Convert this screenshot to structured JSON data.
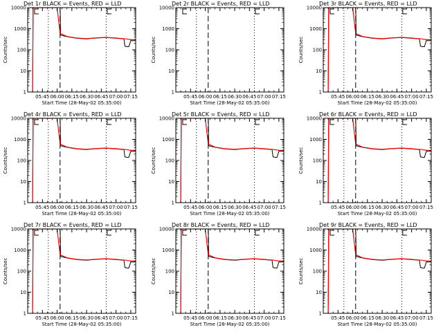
{
  "chart_data": {
    "type": "line",
    "scale": "log",
    "ylim": [
      1,
      10000
    ],
    "x_ticks": [
      "05:45",
      "06:00",
      "06:15",
      "06:30",
      "06:45",
      "07:00",
      "07:15"
    ],
    "y_ticks": [
      "1",
      "10",
      "100",
      "1000",
      "10000"
    ],
    "ylabel": "Counts/sec",
    "xlabel": "Start Time (28-May-02 05:35:00)",
    "series_colors": {
      "events": "#000000",
      "lld": "#ff0000"
    },
    "panels": [
      {
        "title": "Det 1r BLACK = Events, RED = LLD",
        "has_data": true,
        "dotted": [
          "05:51",
          "06:50"
        ],
        "dashed": [
          "06:03"
        ],
        "markers": [
          "05:37",
          "06:51"
        ],
        "events": [
          [
            0,
            1
          ],
          [
            0.5,
            9000
          ],
          [
            1,
            10000
          ],
          [
            28,
            10000
          ],
          [
            28.2,
            5000
          ],
          [
            28.5,
            500
          ],
          [
            35,
            420
          ],
          [
            45,
            350
          ],
          [
            55,
            330
          ],
          [
            65,
            360
          ],
          [
            75,
            380
          ],
          [
            85,
            350
          ],
          [
            93,
            330
          ],
          [
            94,
            150
          ],
          [
            96,
            140
          ],
          [
            98,
            140
          ],
          [
            100,
            270
          ],
          [
            110,
            270
          ]
        ],
        "lld": [
          [
            0,
            1
          ],
          [
            0.5,
            9000
          ],
          [
            1,
            10000
          ],
          [
            25,
            10000
          ],
          [
            28,
            600
          ],
          [
            35,
            430
          ],
          [
            45,
            360
          ],
          [
            55,
            340
          ],
          [
            65,
            370
          ],
          [
            75,
            390
          ],
          [
            85,
            360
          ],
          [
            95,
            330
          ],
          [
            100,
            300
          ],
          [
            110,
            300
          ]
        ]
      },
      {
        "title": "Det 2r BLACK = Events, RED = LLD",
        "has_data": false,
        "dotted": [
          "05:51",
          "06:50"
        ],
        "dashed": [
          "06:03"
        ],
        "markers": [
          "05:37",
          "06:51"
        ],
        "events": [],
        "lld": []
      },
      {
        "title": "Det 3r BLACK = Events, RED = LLD",
        "has_data": true,
        "dotted": [
          "05:51",
          "06:50"
        ],
        "dashed": [
          "06:03"
        ],
        "markers": [
          "05:37",
          "06:51"
        ],
        "events": [
          [
            0,
            1
          ],
          [
            0.5,
            9000
          ],
          [
            1,
            10000
          ],
          [
            28,
            10000
          ],
          [
            28.2,
            5000
          ],
          [
            28.5,
            500
          ],
          [
            35,
            420
          ],
          [
            45,
            350
          ],
          [
            55,
            330
          ],
          [
            65,
            360
          ],
          [
            75,
            380
          ],
          [
            85,
            350
          ],
          [
            93,
            330
          ],
          [
            94,
            150
          ],
          [
            96,
            140
          ],
          [
            98,
            140
          ],
          [
            100,
            270
          ],
          [
            110,
            270
          ]
        ],
        "lld": [
          [
            0,
            1
          ],
          [
            0.5,
            9000
          ],
          [
            1,
            10000
          ],
          [
            25,
            10000
          ],
          [
            28,
            600
          ],
          [
            35,
            430
          ],
          [
            45,
            360
          ],
          [
            55,
            340
          ],
          [
            65,
            370
          ],
          [
            75,
            390
          ],
          [
            85,
            360
          ],
          [
            95,
            330
          ],
          [
            100,
            300
          ],
          [
            110,
            300
          ]
        ]
      },
      {
        "title": "Det 4r BLACK = Events, RED = LLD",
        "has_data": true,
        "dotted": [
          "05:51",
          "06:50"
        ],
        "dashed": [
          "06:03"
        ],
        "markers": [
          "05:37",
          "06:51"
        ],
        "events": [
          [
            0,
            1
          ],
          [
            0.5,
            9000
          ],
          [
            1,
            10000
          ],
          [
            28,
            10000
          ],
          [
            28.2,
            5000
          ],
          [
            28.5,
            500
          ],
          [
            35,
            420
          ],
          [
            45,
            350
          ],
          [
            55,
            330
          ],
          [
            65,
            360
          ],
          [
            75,
            380
          ],
          [
            85,
            350
          ],
          [
            93,
            330
          ],
          [
            94,
            150
          ],
          [
            96,
            140
          ],
          [
            98,
            140
          ],
          [
            100,
            270
          ],
          [
            110,
            270
          ]
        ],
        "lld": [
          [
            0,
            1
          ],
          [
            0.5,
            9000
          ],
          [
            1,
            10000
          ],
          [
            25,
            10000
          ],
          [
            28,
            600
          ],
          [
            35,
            430
          ],
          [
            45,
            360
          ],
          [
            55,
            340
          ],
          [
            65,
            370
          ],
          [
            75,
            390
          ],
          [
            85,
            360
          ],
          [
            95,
            330
          ],
          [
            100,
            300
          ],
          [
            110,
            300
          ]
        ]
      },
      {
        "title": "Det 5r BLACK = Events, RED = LLD",
        "has_data": true,
        "dotted": [
          "05:51",
          "06:50"
        ],
        "dashed": [
          "06:03"
        ],
        "markers": [
          "05:37",
          "06:51"
        ],
        "events": [
          [
            0,
            1
          ],
          [
            0.5,
            9000
          ],
          [
            1,
            10000
          ],
          [
            28,
            10000
          ],
          [
            28.2,
            5000
          ],
          [
            28.5,
            500
          ],
          [
            35,
            420
          ],
          [
            45,
            350
          ],
          [
            55,
            330
          ],
          [
            65,
            360
          ],
          [
            75,
            380
          ],
          [
            85,
            350
          ],
          [
            93,
            330
          ],
          [
            94,
            150
          ],
          [
            96,
            140
          ],
          [
            98,
            140
          ],
          [
            100,
            270
          ],
          [
            110,
            270
          ]
        ],
        "lld": [
          [
            0,
            1
          ],
          [
            0.5,
            9000
          ],
          [
            1,
            10000
          ],
          [
            25,
            10000
          ],
          [
            28,
            600
          ],
          [
            35,
            430
          ],
          [
            45,
            360
          ],
          [
            55,
            340
          ],
          [
            65,
            370
          ],
          [
            75,
            390
          ],
          [
            85,
            360
          ],
          [
            95,
            330
          ],
          [
            100,
            300
          ],
          [
            110,
            300
          ]
        ]
      },
      {
        "title": "Det 6r BLACK = Events, RED = LLD",
        "has_data": true,
        "dotted": [
          "05:51",
          "06:50"
        ],
        "dashed": [
          "06:03"
        ],
        "markers": [
          "05:37",
          "06:51"
        ],
        "events": [
          [
            0,
            1
          ],
          [
            0.5,
            9000
          ],
          [
            1,
            10000
          ],
          [
            28,
            10000
          ],
          [
            28.2,
            5000
          ],
          [
            28.5,
            500
          ],
          [
            35,
            420
          ],
          [
            45,
            350
          ],
          [
            55,
            330
          ],
          [
            65,
            360
          ],
          [
            75,
            380
          ],
          [
            85,
            350
          ],
          [
            93,
            330
          ],
          [
            94,
            150
          ],
          [
            96,
            140
          ],
          [
            98,
            140
          ],
          [
            100,
            270
          ],
          [
            110,
            270
          ]
        ],
        "lld": [
          [
            0,
            1
          ],
          [
            0.5,
            9000
          ],
          [
            1,
            10000
          ],
          [
            25,
            10000
          ],
          [
            28,
            600
          ],
          [
            35,
            430
          ],
          [
            45,
            360
          ],
          [
            55,
            340
          ],
          [
            65,
            370
          ],
          [
            75,
            390
          ],
          [
            85,
            360
          ],
          [
            95,
            330
          ],
          [
            100,
            300
          ],
          [
            110,
            300
          ]
        ]
      },
      {
        "title": "Det 7r BLACK = Events, RED = LLD",
        "has_data": true,
        "dotted": [
          "05:51",
          "06:50"
        ],
        "dashed": [
          "06:03"
        ],
        "markers": [
          "05:37",
          "06:51"
        ],
        "events": [
          [
            0,
            1
          ],
          [
            0.5,
            9000
          ],
          [
            1,
            10000
          ],
          [
            28,
            10000
          ],
          [
            28.2,
            5000
          ],
          [
            28.5,
            500
          ],
          [
            35,
            420
          ],
          [
            45,
            350
          ],
          [
            55,
            330
          ],
          [
            65,
            360
          ],
          [
            75,
            380
          ],
          [
            85,
            350
          ],
          [
            93,
            330
          ],
          [
            94,
            150
          ],
          [
            96,
            140
          ],
          [
            98,
            140
          ],
          [
            100,
            270
          ],
          [
            110,
            270
          ]
        ],
        "lld": [
          [
            0,
            1
          ],
          [
            0.5,
            9000
          ],
          [
            1,
            10000
          ],
          [
            25,
            10000
          ],
          [
            28,
            600
          ],
          [
            35,
            430
          ],
          [
            45,
            360
          ],
          [
            55,
            340
          ],
          [
            65,
            370
          ],
          [
            75,
            390
          ],
          [
            85,
            360
          ],
          [
            95,
            330
          ],
          [
            100,
            300
          ],
          [
            110,
            300
          ]
        ]
      },
      {
        "title": "Det 8r BLACK = Events, RED = LLD",
        "has_data": true,
        "dotted": [
          "05:51",
          "06:50"
        ],
        "dashed": [
          "06:03"
        ],
        "markers": [
          "05:37",
          "06:51"
        ],
        "events": [
          [
            0,
            1
          ],
          [
            0.5,
            9000
          ],
          [
            1,
            10000
          ],
          [
            28,
            10000
          ],
          [
            28.2,
            5000
          ],
          [
            28.5,
            500
          ],
          [
            35,
            420
          ],
          [
            45,
            350
          ],
          [
            55,
            330
          ],
          [
            65,
            360
          ],
          [
            75,
            380
          ],
          [
            85,
            350
          ],
          [
            93,
            330
          ],
          [
            94,
            150
          ],
          [
            96,
            140
          ],
          [
            98,
            140
          ],
          [
            100,
            270
          ],
          [
            110,
            270
          ]
        ],
        "lld": [
          [
            0,
            1
          ],
          [
            0.5,
            9000
          ],
          [
            1,
            10000
          ],
          [
            25,
            10000
          ],
          [
            28,
            600
          ],
          [
            35,
            430
          ],
          [
            45,
            360
          ],
          [
            55,
            340
          ],
          [
            65,
            370
          ],
          [
            75,
            390
          ],
          [
            85,
            360
          ],
          [
            95,
            330
          ],
          [
            100,
            300
          ],
          [
            110,
            300
          ]
        ]
      },
      {
        "title": "Det 9r BLACK = Events, RED = LLD",
        "has_data": true,
        "dotted": [
          "05:51",
          "06:50"
        ],
        "dashed": [
          "06:03"
        ],
        "markers": [
          "05:37",
          "06:51"
        ],
        "events": [
          [
            0,
            1
          ],
          [
            0.5,
            9000
          ],
          [
            1,
            10000
          ],
          [
            28,
            10000
          ],
          [
            28.2,
            5000
          ],
          [
            28.5,
            500
          ],
          [
            35,
            420
          ],
          [
            45,
            350
          ],
          [
            55,
            330
          ],
          [
            65,
            360
          ],
          [
            75,
            380
          ],
          [
            85,
            350
          ],
          [
            93,
            330
          ],
          [
            94,
            150
          ],
          [
            96,
            140
          ],
          [
            98,
            140
          ],
          [
            100,
            270
          ],
          [
            110,
            270
          ]
        ],
        "lld": [
          [
            0,
            1
          ],
          [
            0.5,
            9000
          ],
          [
            1,
            10000
          ],
          [
            25,
            10000
          ],
          [
            28,
            600
          ],
          [
            35,
            430
          ],
          [
            45,
            360
          ],
          [
            55,
            340
          ],
          [
            65,
            370
          ],
          [
            75,
            390
          ],
          [
            85,
            360
          ],
          [
            95,
            330
          ],
          [
            100,
            300
          ],
          [
            110,
            300
          ]
        ]
      }
    ]
  }
}
